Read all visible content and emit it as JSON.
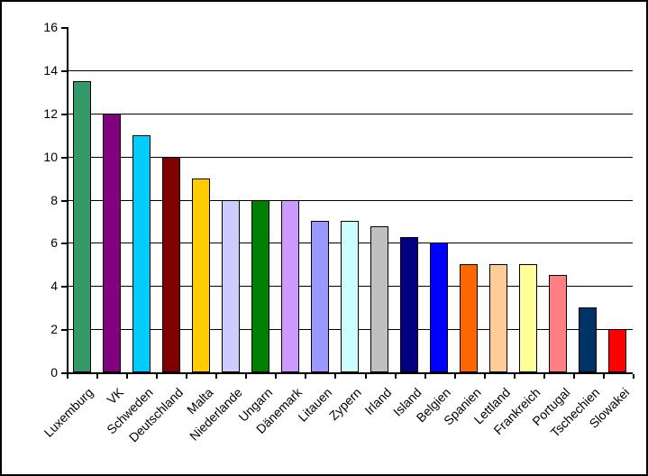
{
  "chart_data": {
    "type": "bar",
    "title": "",
    "xlabel": "",
    "ylabel": "",
    "categories": [
      "Luxemburg",
      "VK",
      "Schweden",
      "Deutschland",
      "Malta",
      "Niederlande",
      "Ungarn",
      "Dänemark",
      "Litauen",
      "Zypern",
      "Irland",
      "Island",
      "Belgien",
      "Spanien",
      "Lettland",
      "Frankreich",
      "Portugal",
      "Tschechien",
      "Slowakei"
    ],
    "values": [
      13.5,
      12,
      11,
      10,
      9,
      8,
      8,
      8,
      7,
      7,
      6.75,
      6.25,
      6,
      5,
      5,
      5,
      4.5,
      3,
      2
    ],
    "bar_colors": [
      "#339966",
      "#800080",
      "#00CCFF",
      "#800000",
      "#FFCC00",
      "#CCCCFF",
      "#008000",
      "#CC99FF",
      "#9999FF",
      "#CCFFFF",
      "#C0C0C0",
      "#000080",
      "#0000FF",
      "#FF6600",
      "#FFCC99",
      "#FFFF99",
      "#FF8080",
      "#003366",
      "#FF0000"
    ],
    "bar_border_color": "#000000",
    "ylim": [
      0,
      16
    ],
    "ytick_step": 2,
    "ytick_labels": [
      "0",
      "2",
      "4",
      "6",
      "8",
      "10",
      "12",
      "14",
      "16"
    ],
    "grid": "horizontal-major-only",
    "gridline_color": "#000000",
    "legend": "none",
    "x_label_rotation_deg": 45,
    "sort_order": "descending"
  }
}
